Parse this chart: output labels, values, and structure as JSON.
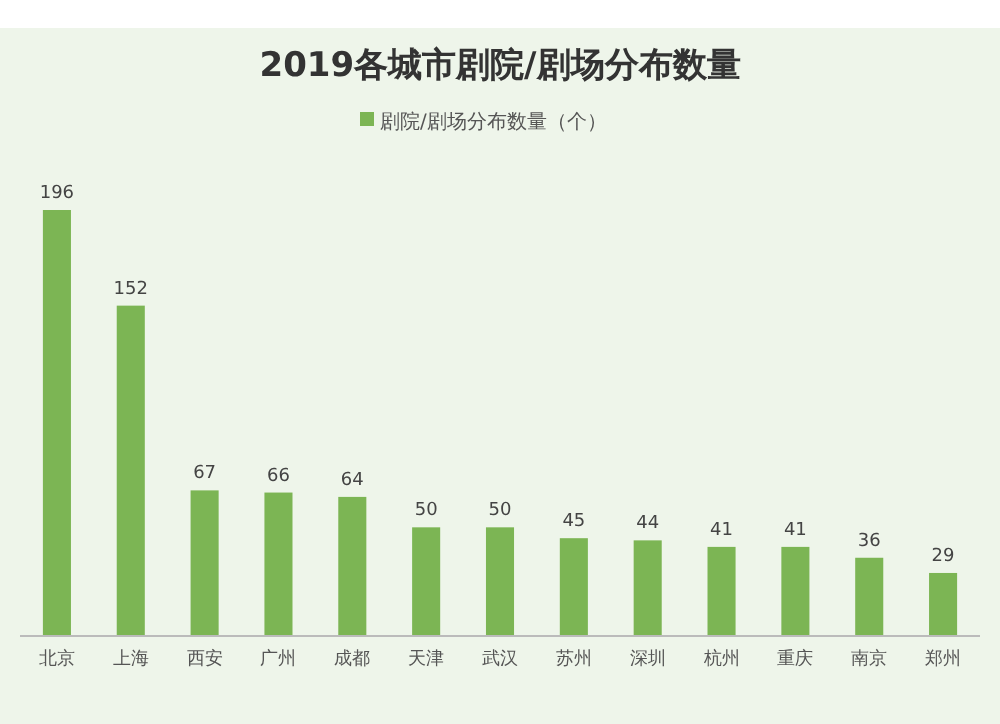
{
  "chart_data": {
    "type": "bar",
    "title": "2019各城市剧院/剧场分布数量",
    "categories": [
      "北京",
      "上海",
      "西安",
      "广州",
      "成都",
      "天津",
      "武汉",
      "苏州",
      "深圳",
      "杭州",
      "重庆",
      "南京",
      "郑州"
    ],
    "series": [
      {
        "name": "剧院/剧场分布数量（个）",
        "color": "#7cb554",
        "values": [
          196,
          152,
          67,
          66,
          64,
          50,
          50,
          45,
          44,
          41,
          41,
          36,
          29
        ]
      }
    ],
    "data_labels": true,
    "legend": "top"
  }
}
